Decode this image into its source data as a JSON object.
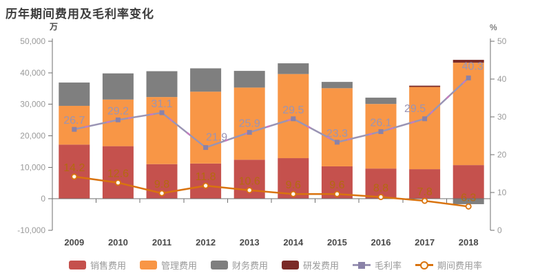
{
  "chart": {
    "title": "历年期间费用及毛利率变化",
    "left_axis": {
      "unit": "万",
      "min": -10000,
      "max": 50000,
      "tick_labels": [
        "50,000",
        "40,000",
        "30,000",
        "20,000",
        "10,000",
        "0",
        "-10,000"
      ]
    },
    "right_axis": {
      "unit": "%",
      "min": 0,
      "max": 50,
      "tick_labels": [
        "50",
        "40",
        "30",
        "20",
        "10",
        "0"
      ]
    },
    "colors": {
      "axis_line": "#6e6e6e",
      "tick_text": "#999999",
      "year_text": "#4a4a4a",
      "title_text": "#3b3b3b"
    }
  },
  "chart_data": {
    "type": "bar+line",
    "title": "历年期间费用及毛利率变化",
    "categories": [
      "2009",
      "2010",
      "2011",
      "2012",
      "2013",
      "2014",
      "2015",
      "2016",
      "2017",
      "2018"
    ],
    "bar_unit": "万",
    "line_unit": "%",
    "left_axis_range": [
      -10000,
      50000
    ],
    "right_axis_range": [
      0,
      50
    ],
    "grid": false,
    "legend_position": "bottom",
    "bar_series": [
      {
        "name": "销售费用",
        "key": "sales",
        "color": "#c5514d",
        "stack": true,
        "values": [
          17200,
          16700,
          11000,
          11200,
          12400,
          12900,
          10300,
          9600,
          9400,
          10700
        ]
      },
      {
        "name": "管理费用",
        "key": "admin",
        "color": "#f89646",
        "stack": true,
        "values": [
          12300,
          14800,
          21300,
          22800,
          22900,
          26700,
          24800,
          20500,
          26100,
          32500
        ]
      },
      {
        "name": "财务费用",
        "key": "finance",
        "color": "#7f7f7f",
        "stack": true,
        "values": [
          7400,
          8300,
          8200,
          7400,
          5300,
          3400,
          2000,
          2000,
          0,
          -1700
        ]
      },
      {
        "name": "研发费用",
        "key": "rd",
        "color": "#7b2a27",
        "stack": true,
        "values": [
          0,
          0,
          0,
          0,
          0,
          0,
          0,
          0,
          400,
          900
        ]
      }
    ],
    "line_series": [
      {
        "name": "毛利率",
        "key": "gross-margin",
        "color": "#9a94b4",
        "dash_color": "#c77bc0",
        "marker": "square",
        "marker_color": "#8a82a8",
        "label_class": "val-label-gm",
        "axis": "right",
        "values": [
          26.7,
          29.2,
          31.1,
          21.9,
          25.9,
          29.5,
          23.3,
          26.1,
          29.5,
          40.3
        ]
      },
      {
        "name": "期间费用率",
        "key": "expense-ratio",
        "color": "#d9730e",
        "dash_color": null,
        "marker": "circle",
        "marker_color": "#fff8ec",
        "label_class": "val-label-er",
        "axis": "right",
        "values": [
          14.2,
          12.6,
          9.8,
          11.8,
          10.6,
          9.6,
          9.6,
          8.8,
          7.8,
          6.3
        ]
      }
    ]
  }
}
